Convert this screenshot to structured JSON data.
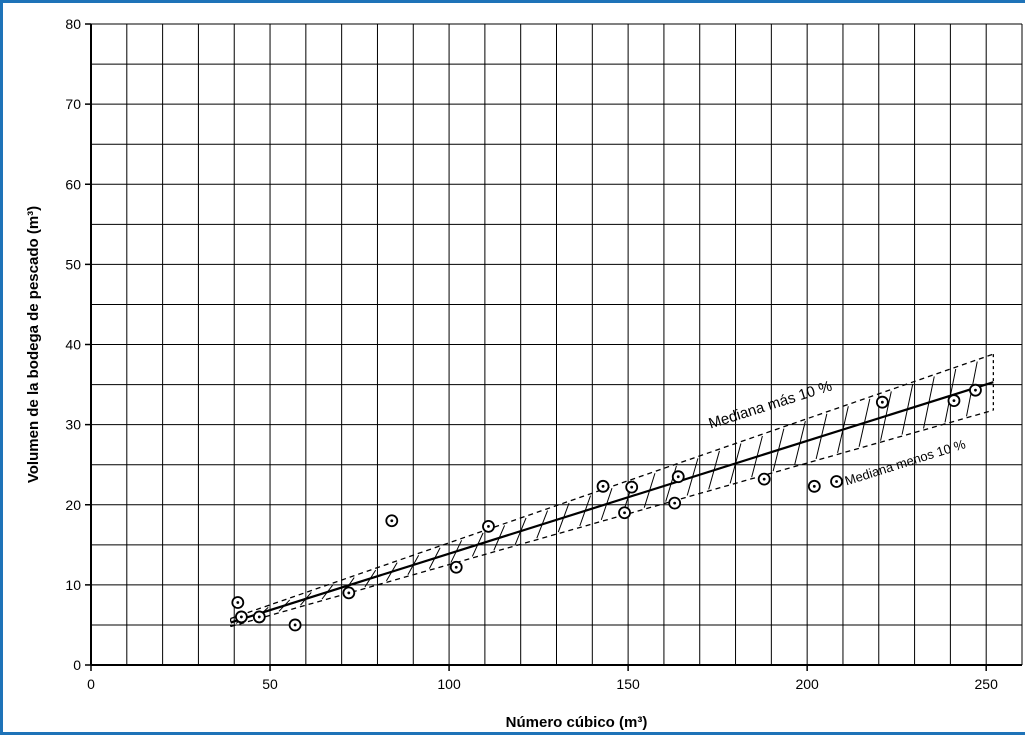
{
  "chart_data": {
    "type": "scatter",
    "xlabel": "Número cúbico (m³)",
    "ylabel": "Volumen de la bodega de pescado (m³)",
    "xlim": [
      0,
      260
    ],
    "ylim": [
      0,
      80
    ],
    "x_ticks": [
      0,
      50,
      100,
      150,
      200,
      250
    ],
    "y_ticks": [
      0,
      10,
      20,
      30,
      40,
      50,
      60,
      70,
      80
    ],
    "x_minor_step": 10,
    "y_minor_step": 5,
    "grid": true,
    "colors": {
      "frame": "#1e73b8",
      "ink": "#000000"
    },
    "series": [
      {
        "kind": "points",
        "x": [
          41,
          42,
          47,
          57,
          72,
          84,
          102,
          111,
          143,
          149,
          151,
          163,
          164,
          188,
          202,
          221,
          241,
          247
        ],
        "y": [
          7.8,
          6.0,
          6.0,
          5.0,
          9.0,
          18.0,
          12.2,
          17.3,
          22.3,
          19.0,
          22.2,
          20.2,
          23.5,
          23.2,
          22.3,
          32.8,
          33.0,
          34.3
        ]
      },
      {
        "kind": "median-line",
        "x": [
          39,
          252
        ],
        "y": [
          5.3,
          35.3
        ]
      },
      {
        "kind": "upper-band",
        "x": [
          39,
          252
        ],
        "y": [
          5.8,
          38.8
        ]
      },
      {
        "kind": "lower-band",
        "x": [
          39,
          252
        ],
        "y": [
          4.8,
          31.8
        ]
      }
    ],
    "annotations": [
      {
        "text": "Mediana más 10 %",
        "x": 173,
        "y": 29.5
      },
      {
        "text": "Mediana menos 10 %",
        "x": 211,
        "y": 22.4
      }
    ]
  }
}
